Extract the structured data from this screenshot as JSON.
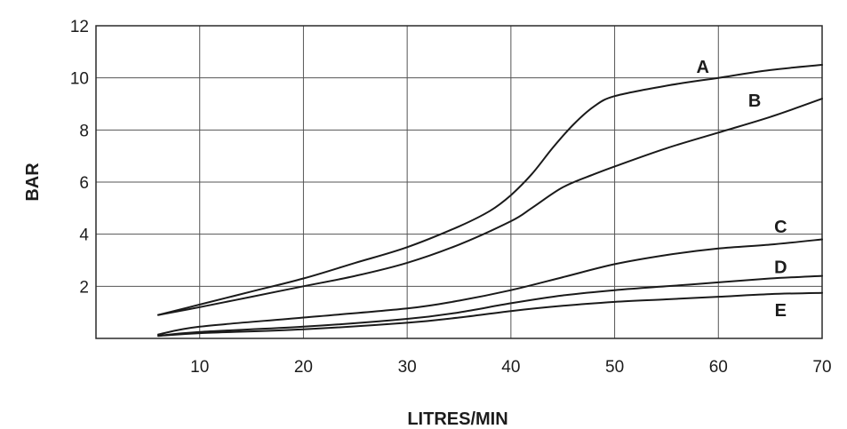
{
  "chart_data": {
    "type": "line",
    "xlabel": "LITRES/MIN",
    "ylabel": "BAR",
    "xlim": [
      0,
      70
    ],
    "ylim": [
      0,
      12
    ],
    "x_ticks": [
      10,
      20,
      30,
      40,
      50,
      60,
      70
    ],
    "y_ticks": [
      2,
      4,
      6,
      8,
      10,
      12
    ],
    "grid": true,
    "series": [
      {
        "name": "A",
        "x": [
          6,
          10,
          15,
          20,
          25,
          30,
          35,
          38,
          40,
          42,
          44,
          46,
          48,
          50,
          55,
          60,
          65,
          70
        ],
        "values": [
          0.9,
          1.3,
          1.8,
          2.3,
          2.9,
          3.5,
          4.3,
          4.9,
          5.5,
          6.3,
          7.3,
          8.2,
          8.9,
          9.3,
          9.7,
          10.0,
          10.3,
          10.5
        ]
      },
      {
        "name": "B",
        "x": [
          6,
          10,
          15,
          20,
          25,
          30,
          35,
          40,
          42,
          45,
          48,
          50,
          55,
          60,
          65,
          70
        ],
        "values": [
          0.9,
          1.2,
          1.6,
          2.0,
          2.4,
          2.9,
          3.6,
          4.5,
          5.0,
          5.8,
          6.3,
          6.6,
          7.3,
          7.9,
          8.5,
          9.2
        ]
      },
      {
        "name": "C",
        "x": [
          6,
          10,
          20,
          30,
          35,
          40,
          45,
          50,
          55,
          60,
          65,
          70
        ],
        "values": [
          0.15,
          0.45,
          0.8,
          1.15,
          1.45,
          1.85,
          2.35,
          2.85,
          3.2,
          3.45,
          3.6,
          3.8
        ]
      },
      {
        "name": "D",
        "x": [
          6,
          10,
          20,
          30,
          35,
          40,
          45,
          50,
          55,
          60,
          65,
          70
        ],
        "values": [
          0.1,
          0.25,
          0.45,
          0.75,
          1.0,
          1.35,
          1.65,
          1.85,
          2.0,
          2.15,
          2.3,
          2.4
        ]
      },
      {
        "name": "E",
        "x": [
          6,
          10,
          20,
          30,
          35,
          40,
          45,
          50,
          55,
          60,
          65,
          70
        ],
        "values": [
          0.1,
          0.2,
          0.35,
          0.6,
          0.8,
          1.05,
          1.25,
          1.4,
          1.5,
          1.6,
          1.7,
          1.75
        ]
      }
    ]
  }
}
